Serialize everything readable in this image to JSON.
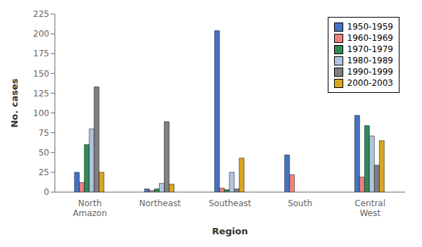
{
  "chart_data": {
    "type": "bar",
    "xlabel": "Region",
    "ylabel": "No. cases",
    "categories": [
      "North\nAmazon",
      "Northeast",
      "Southeast",
      "South",
      "Central\nWest"
    ],
    "series": [
      {
        "name": "1950-1959",
        "color": "#4472c4",
        "values": [
          25,
          4,
          204,
          47,
          97
        ]
      },
      {
        "name": "1960-1969",
        "color": "#f08080",
        "values": [
          12,
          2,
          5,
          22,
          19
        ]
      },
      {
        "name": "1970-1979",
        "color": "#2e8b57",
        "values": [
          60,
          4,
          3,
          0,
          84
        ]
      },
      {
        "name": "1980-1989",
        "color": "#b0c4de",
        "values": [
          80,
          11,
          25,
          0,
          71
        ]
      },
      {
        "name": "1990-1999",
        "color": "#808080",
        "values": [
          133,
          89,
          4,
          0,
          34
        ]
      },
      {
        "name": "2000-2003",
        "color": "#daa520",
        "values": [
          25,
          10,
          43,
          0,
          65
        ]
      }
    ],
    "ylim": [
      0,
      225
    ],
    "yticks": [
      0,
      25,
      50,
      75,
      100,
      125,
      150,
      175,
      200,
      225
    ],
    "grid": false,
    "legend": "upper right"
  }
}
